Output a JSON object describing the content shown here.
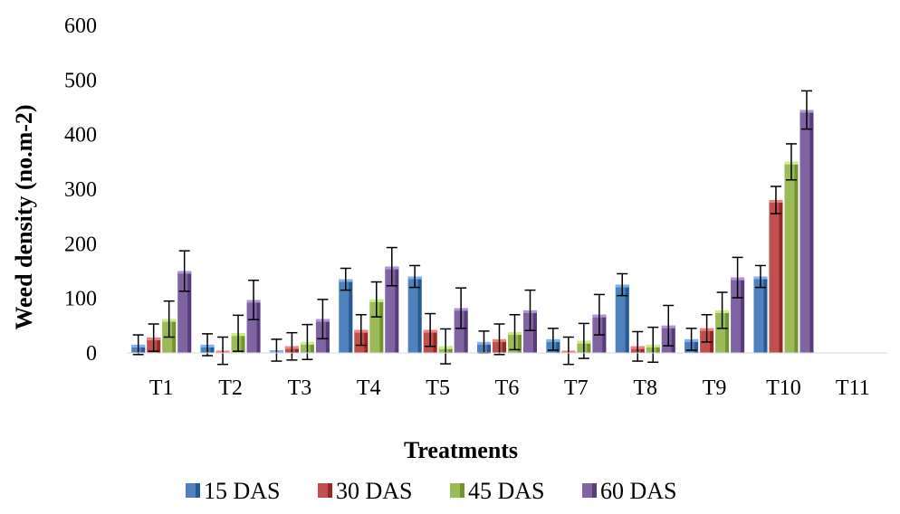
{
  "chart_data": {
    "type": "bar",
    "title": "",
    "xlabel": "Treatments",
    "ylabel": "Weed density (no.m-2)",
    "ylim": [
      0,
      600
    ],
    "yticks": [
      0,
      100,
      200,
      300,
      400,
      500,
      600
    ],
    "grid": false,
    "legend_position": "bottom",
    "categories": [
      "T1",
      "T2",
      "T3",
      "T4",
      "T5",
      "T6",
      "T7",
      "T8",
      "T9",
      "T10",
      "T11"
    ],
    "series": [
      {
        "name": "15 DAS",
        "color": "#4f81bd",
        "values": [
          15,
          15,
          5,
          135,
          140,
          20,
          25,
          125,
          25,
          140,
          0
        ],
        "errors": [
          18,
          20,
          20,
          20,
          20,
          20,
          20,
          20,
          20,
          20,
          0
        ]
      },
      {
        "name": "30 DAS",
        "color": "#c0504d",
        "values": [
          28,
          4,
          12,
          42,
          42,
          25,
          4,
          12,
          45,
          280,
          0
        ],
        "errors": [
          25,
          25,
          25,
          28,
          30,
          28,
          25,
          27,
          25,
          25,
          0
        ]
      },
      {
        "name": "45 DAS",
        "color": "#9bbb59",
        "values": [
          62,
          36,
          20,
          98,
          12,
          38,
          22,
          15,
          78,
          350,
          0
        ],
        "errors": [
          33,
          33,
          32,
          32,
          32,
          32,
          32,
          32,
          33,
          33,
          0
        ]
      },
      {
        "name": "60 DAS",
        "color": "#8064a2",
        "values": [
          150,
          97,
          62,
          158,
          82,
          78,
          70,
          50,
          138,
          445,
          0
        ],
        "errors": [
          37,
          36,
          36,
          35,
          37,
          37,
          37,
          37,
          37,
          35,
          0
        ]
      }
    ]
  }
}
